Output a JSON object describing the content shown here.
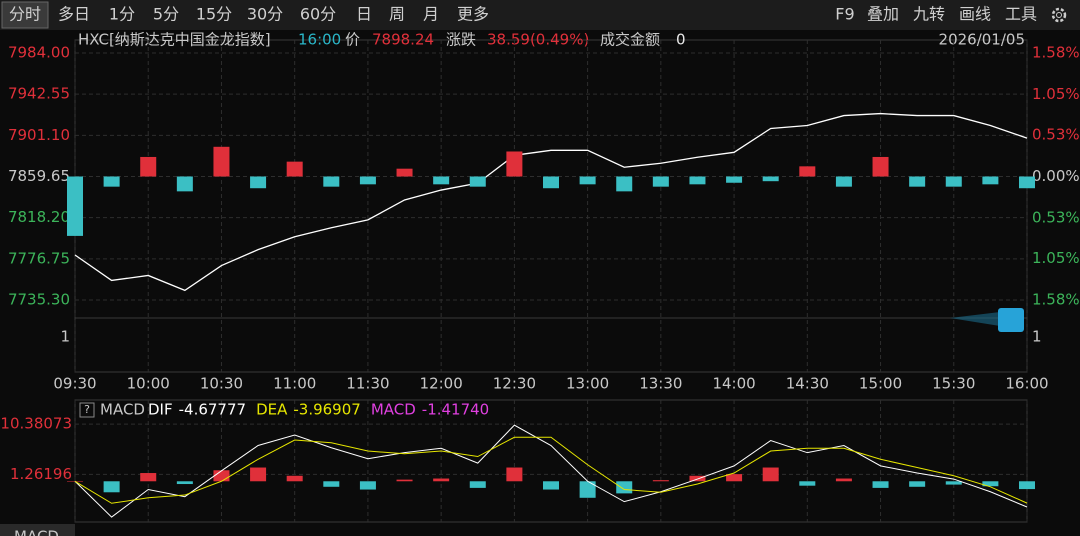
{
  "toolbar": {
    "left": [
      "分时",
      "多日",
      "1分",
      "5分",
      "15分",
      "30分",
      "60分",
      "日",
      "周",
      "月",
      "更多"
    ],
    "right": [
      "F9",
      "叠加",
      "九转",
      "画线",
      "工具"
    ]
  },
  "chart_data": [
    {
      "type": "price",
      "title": "HXC[纳斯达克中国金龙指数]",
      "info": [
        "16:00",
        "价",
        "7898.24",
        "涨跌",
        "38.59(0.49%)",
        "成交金额",
        "0"
      ],
      "date": "2026/01/05",
      "categories": [
        "09:30",
        null,
        "10:00",
        null,
        "10:30",
        null,
        "11:00",
        null,
        "11:30",
        null,
        "12:00",
        null,
        "12:30",
        null,
        "13:00",
        null,
        "13:30",
        null,
        "14:00",
        null,
        "14:30",
        null,
        "15:00",
        null,
        "15:30",
        null,
        "16:00"
      ],
      "series": [
        {
          "type": "line",
          "color": "#ffffff",
          "values": [
            7780.6,
            7755,
            7760,
            7745,
            7770,
            7786,
            7799,
            7808,
            7816,
            7836,
            7846,
            7853,
            7881,
            7886,
            7886,
            7869,
            7873,
            7879,
            7884,
            7908,
            7911,
            7921,
            7923,
            7921,
            7921,
            7911,
            7898.24
          ]
        },
        {
          "type": "bar",
          "axis": "y2",
          "color": "#e0303a",
          "negative_color": "#3bbfc4",
          "values": [
            -0.76,
            -0.13,
            0.25,
            -0.19,
            0.38,
            -0.15,
            0.19,
            -0.13,
            -0.1,
            0.1,
            -0.1,
            -0.13,
            0.32,
            -0.15,
            -0.1,
            -0.19,
            -0.13,
            -0.1,
            -0.08,
            -0.06,
            0.13,
            -0.13,
            0.25,
            -0.13,
            -0.13,
            -0.1,
            -0.15
          ]
        }
      ],
      "ylim": [
        7735.3,
        7984
      ],
      "yticks": [
        {
          "value": 7984,
          "label": "7984.00"
        },
        7942.55,
        {
          "value": 7901.1,
          "label": "7901.10"
        },
        7859.65,
        {
          "value": 7818.2,
          "label": "7818.20"
        },
        7776.75,
        {
          "value": 7735.3,
          "label": "7735.30"
        }
      ],
      "y2lim": [
        -1.58,
        1.58
      ],
      "y2ticks": [
        {
          "value": 1.58,
          "label": "1.58%"
        },
        {
          "value": 1.05,
          "label": "1.05%"
        },
        {
          "value": 0.53,
          "label": "0.53%"
        },
        {
          "value": 0,
          "label": "0.00%"
        },
        {
          "value": -0.53,
          "label": "0.53%"
        },
        {
          "value": -1.05,
          "label": "1.05%"
        },
        {
          "value": -1.58,
          "label": "1.58%"
        }
      ],
      "volume_ticks": [
        1
      ],
      "grid": true
    },
    {
      "type": "macd",
      "indicator": "MACD",
      "categories": [
        "09:30",
        null,
        "10:00",
        null,
        "10:30",
        null,
        "11:00",
        null,
        "11:30",
        null,
        "12:00",
        null,
        "12:30",
        null,
        "13:00",
        null,
        "13:30",
        null,
        "14:00",
        null,
        "14:30",
        null,
        "15:00",
        null,
        "15:30",
        null,
        "16:00"
      ],
      "series": [
        {
          "name": "DIF",
          "type": "line",
          "color": "#ffffff",
          "readout": "-4.67777",
          "values": [
            0,
            -6.5,
            -1.5,
            -2.8,
            1.9,
            6.5,
            8.4,
            6.1,
            4.1,
            5.2,
            6.0,
            3.3,
            10.2,
            6.5,
            0,
            -3.7,
            -1.9,
            0.4,
            2.8,
            7.4,
            5.2,
            6.5,
            2.8,
            1.5,
            0.4,
            -1.9,
            -4.67777
          ]
        },
        {
          "name": "DEA",
          "type": "line",
          "color": "#e6e600",
          "readout": "-3.96907",
          "values": [
            0,
            -4,
            -3,
            -2.5,
            0,
            4,
            7.5,
            7,
            5.5,
            5,
            5.5,
            4.5,
            8,
            8,
            3,
            -1.5,
            -2,
            -0.5,
            1.5,
            5.5,
            6,
            6,
            4,
            2.5,
            1,
            -1,
            -3.96907
          ]
        },
        {
          "name": "MACD",
          "type": "bar",
          "color": "#e0303a",
          "negative_color": "#3bbfc4",
          "label_color": "#e040e0",
          "readout": "-1.41740",
          "values": [
            0,
            -2,
            1.5,
            -0.5,
            2,
            2.5,
            1,
            -1,
            -1.5,
            0.3,
            0.5,
            -1.2,
            2.5,
            -1.5,
            -3,
            -2.2,
            0.2,
            1,
            1.3,
            2.5,
            -0.8,
            0.5,
            -1.2,
            -1,
            -0.6,
            -0.9,
            -1.4174
          ]
        }
      ],
      "ylim": [
        -7.4,
        11.5
      ],
      "yticks": [
        10.38073,
        1.26196
      ],
      "grid": true
    }
  ]
}
